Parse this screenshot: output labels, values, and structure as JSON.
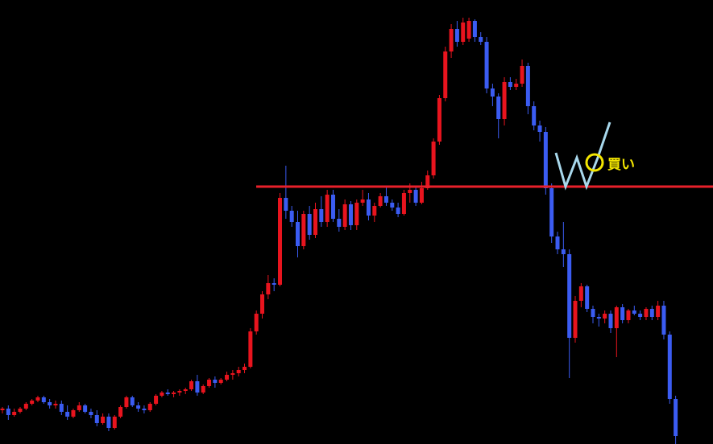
{
  "chart_data": {
    "type": "candlestick",
    "open": [
      42,
      44,
      36,
      40,
      44,
      50,
      54,
      58,
      52,
      48,
      50,
      40,
      34,
      42,
      48,
      40,
      36,
      26,
      34,
      20,
      34,
      46,
      58,
      48,
      44,
      42,
      50,
      60,
      64,
      62,
      64,
      66,
      68,
      78,
      64,
      72,
      80,
      76,
      80,
      86,
      88,
      92,
      96,
      140,
      162,
      186,
      200,
      198,
      306,
      290,
      276,
      246,
      286,
      260,
      292,
      276,
      310,
      280,
      270,
      298,
      272,
      300,
      304,
      284,
      296,
      308,
      300,
      294,
      286,
      312,
      316,
      300,
      318,
      334,
      376,
      430,
      488,
      516,
      500,
      504,
      526,
      506,
      500,
      442,
      432,
      404,
      450,
      444,
      448,
      470,
      420,
      396,
      388,
      318,
      258,
      242,
      236,
      132,
      178,
      196,
      168,
      158,
      156,
      162,
      144,
      170,
      154,
      166,
      162,
      158,
      168,
      158,
      172,
      136,
      56
    ],
    "high": [
      46,
      48,
      44,
      46,
      52,
      56,
      60,
      60,
      56,
      54,
      54,
      48,
      44,
      52,
      50,
      44,
      42,
      38,
      38,
      36,
      48,
      60,
      60,
      52,
      48,
      52,
      62,
      66,
      68,
      66,
      68,
      70,
      80,
      86,
      74,
      82,
      84,
      82,
      90,
      92,
      96,
      100,
      144,
      166,
      190,
      210,
      206,
      312,
      346,
      296,
      290,
      290,
      296,
      300,
      308,
      316,
      316,
      292,
      304,
      302,
      304,
      316,
      312,
      300,
      312,
      320,
      304,
      300,
      316,
      324,
      320,
      326,
      340,
      380,
      434,
      494,
      522,
      526,
      530,
      530,
      528,
      512,
      506,
      448,
      436,
      456,
      456,
      454,
      478,
      474,
      426,
      402,
      394,
      324,
      264,
      276,
      242,
      184,
      200,
      198,
      172,
      162,
      166,
      166,
      172,
      174,
      168,
      172,
      166,
      170,
      172,
      178,
      178,
      140,
      60
    ],
    "low": [
      38,
      30,
      34,
      38,
      42,
      48,
      52,
      50,
      44,
      44,
      36,
      30,
      32,
      40,
      38,
      32,
      22,
      24,
      16,
      18,
      32,
      44,
      46,
      40,
      38,
      40,
      48,
      58,
      60,
      58,
      60,
      62,
      66,
      60,
      62,
      70,
      70,
      74,
      78,
      80,
      84,
      88,
      94,
      136,
      156,
      180,
      190,
      196,
      280,
      270,
      232,
      242,
      254,
      256,
      270,
      270,
      276,
      264,
      266,
      266,
      266,
      296,
      278,
      276,
      294,
      296,
      290,
      282,
      284,
      300,
      296,
      298,
      316,
      330,
      372,
      426,
      480,
      494,
      496,
      500,
      500,
      496,
      436,
      420,
      380,
      396,
      440,
      440,
      444,
      410,
      390,
      376,
      310,
      250,
      236,
      220,
      82,
      126,
      170,
      164,
      150,
      146,
      150,
      138,
      108,
      150,
      150,
      160,
      154,
      154,
      154,
      154,
      130,
      50,
      0
    ],
    "close": [
      44,
      36,
      40,
      44,
      50,
      54,
      58,
      52,
      48,
      50,
      40,
      34,
      42,
      48,
      40,
      36,
      26,
      34,
      20,
      34,
      46,
      58,
      48,
      44,
      42,
      50,
      60,
      64,
      62,
      64,
      66,
      68,
      78,
      64,
      72,
      80,
      76,
      80,
      86,
      88,
      92,
      96,
      140,
      162,
      186,
      200,
      198,
      306,
      290,
      276,
      246,
      286,
      260,
      292,
      276,
      310,
      280,
      270,
      298,
      272,
      300,
      304,
      284,
      296,
      308,
      300,
      294,
      286,
      312,
      316,
      300,
      318,
      334,
      376,
      430,
      488,
      516,
      500,
      524,
      526,
      506,
      500,
      442,
      432,
      404,
      450,
      444,
      448,
      470,
      420,
      396,
      388,
      318,
      258,
      242,
      236,
      132,
      178,
      196,
      168,
      158,
      156,
      162,
      144,
      170,
      154,
      166,
      162,
      158,
      168,
      158,
      172,
      136,
      56,
      10
    ],
    "up_color": "#e8141e",
    "down_color": "#3b5cf2",
    "ylim": [
      0,
      552
    ],
    "level_line": {
      "value": 320,
      "color": "#e8202a"
    },
    "annotation": "買い"
  }
}
